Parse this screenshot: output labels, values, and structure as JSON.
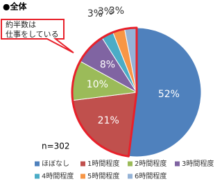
{
  "chart_data": {
    "type": "pie",
    "title": "●全体",
    "annotation": [
      "約半数は",
      "仕事をしている"
    ],
    "note": "n=302",
    "categories": [
      "ほぼなし",
      "1時間程度",
      "2時間程度",
      "3時間程度",
      "4時間程度",
      "5時間程度",
      "6時間程度"
    ],
    "values": [
      52,
      21,
      10,
      8,
      3,
      3,
      3
    ],
    "value_labels": [
      "52%",
      "21%",
      "10%",
      "8%",
      "3%",
      "3%",
      "3%"
    ],
    "colors": [
      "#4f81bd",
      "#c0504d",
      "#9bbb59",
      "#8064a2",
      "#4bacc6",
      "#f79646",
      "#95b3d7"
    ],
    "legend": "bottom"
  }
}
